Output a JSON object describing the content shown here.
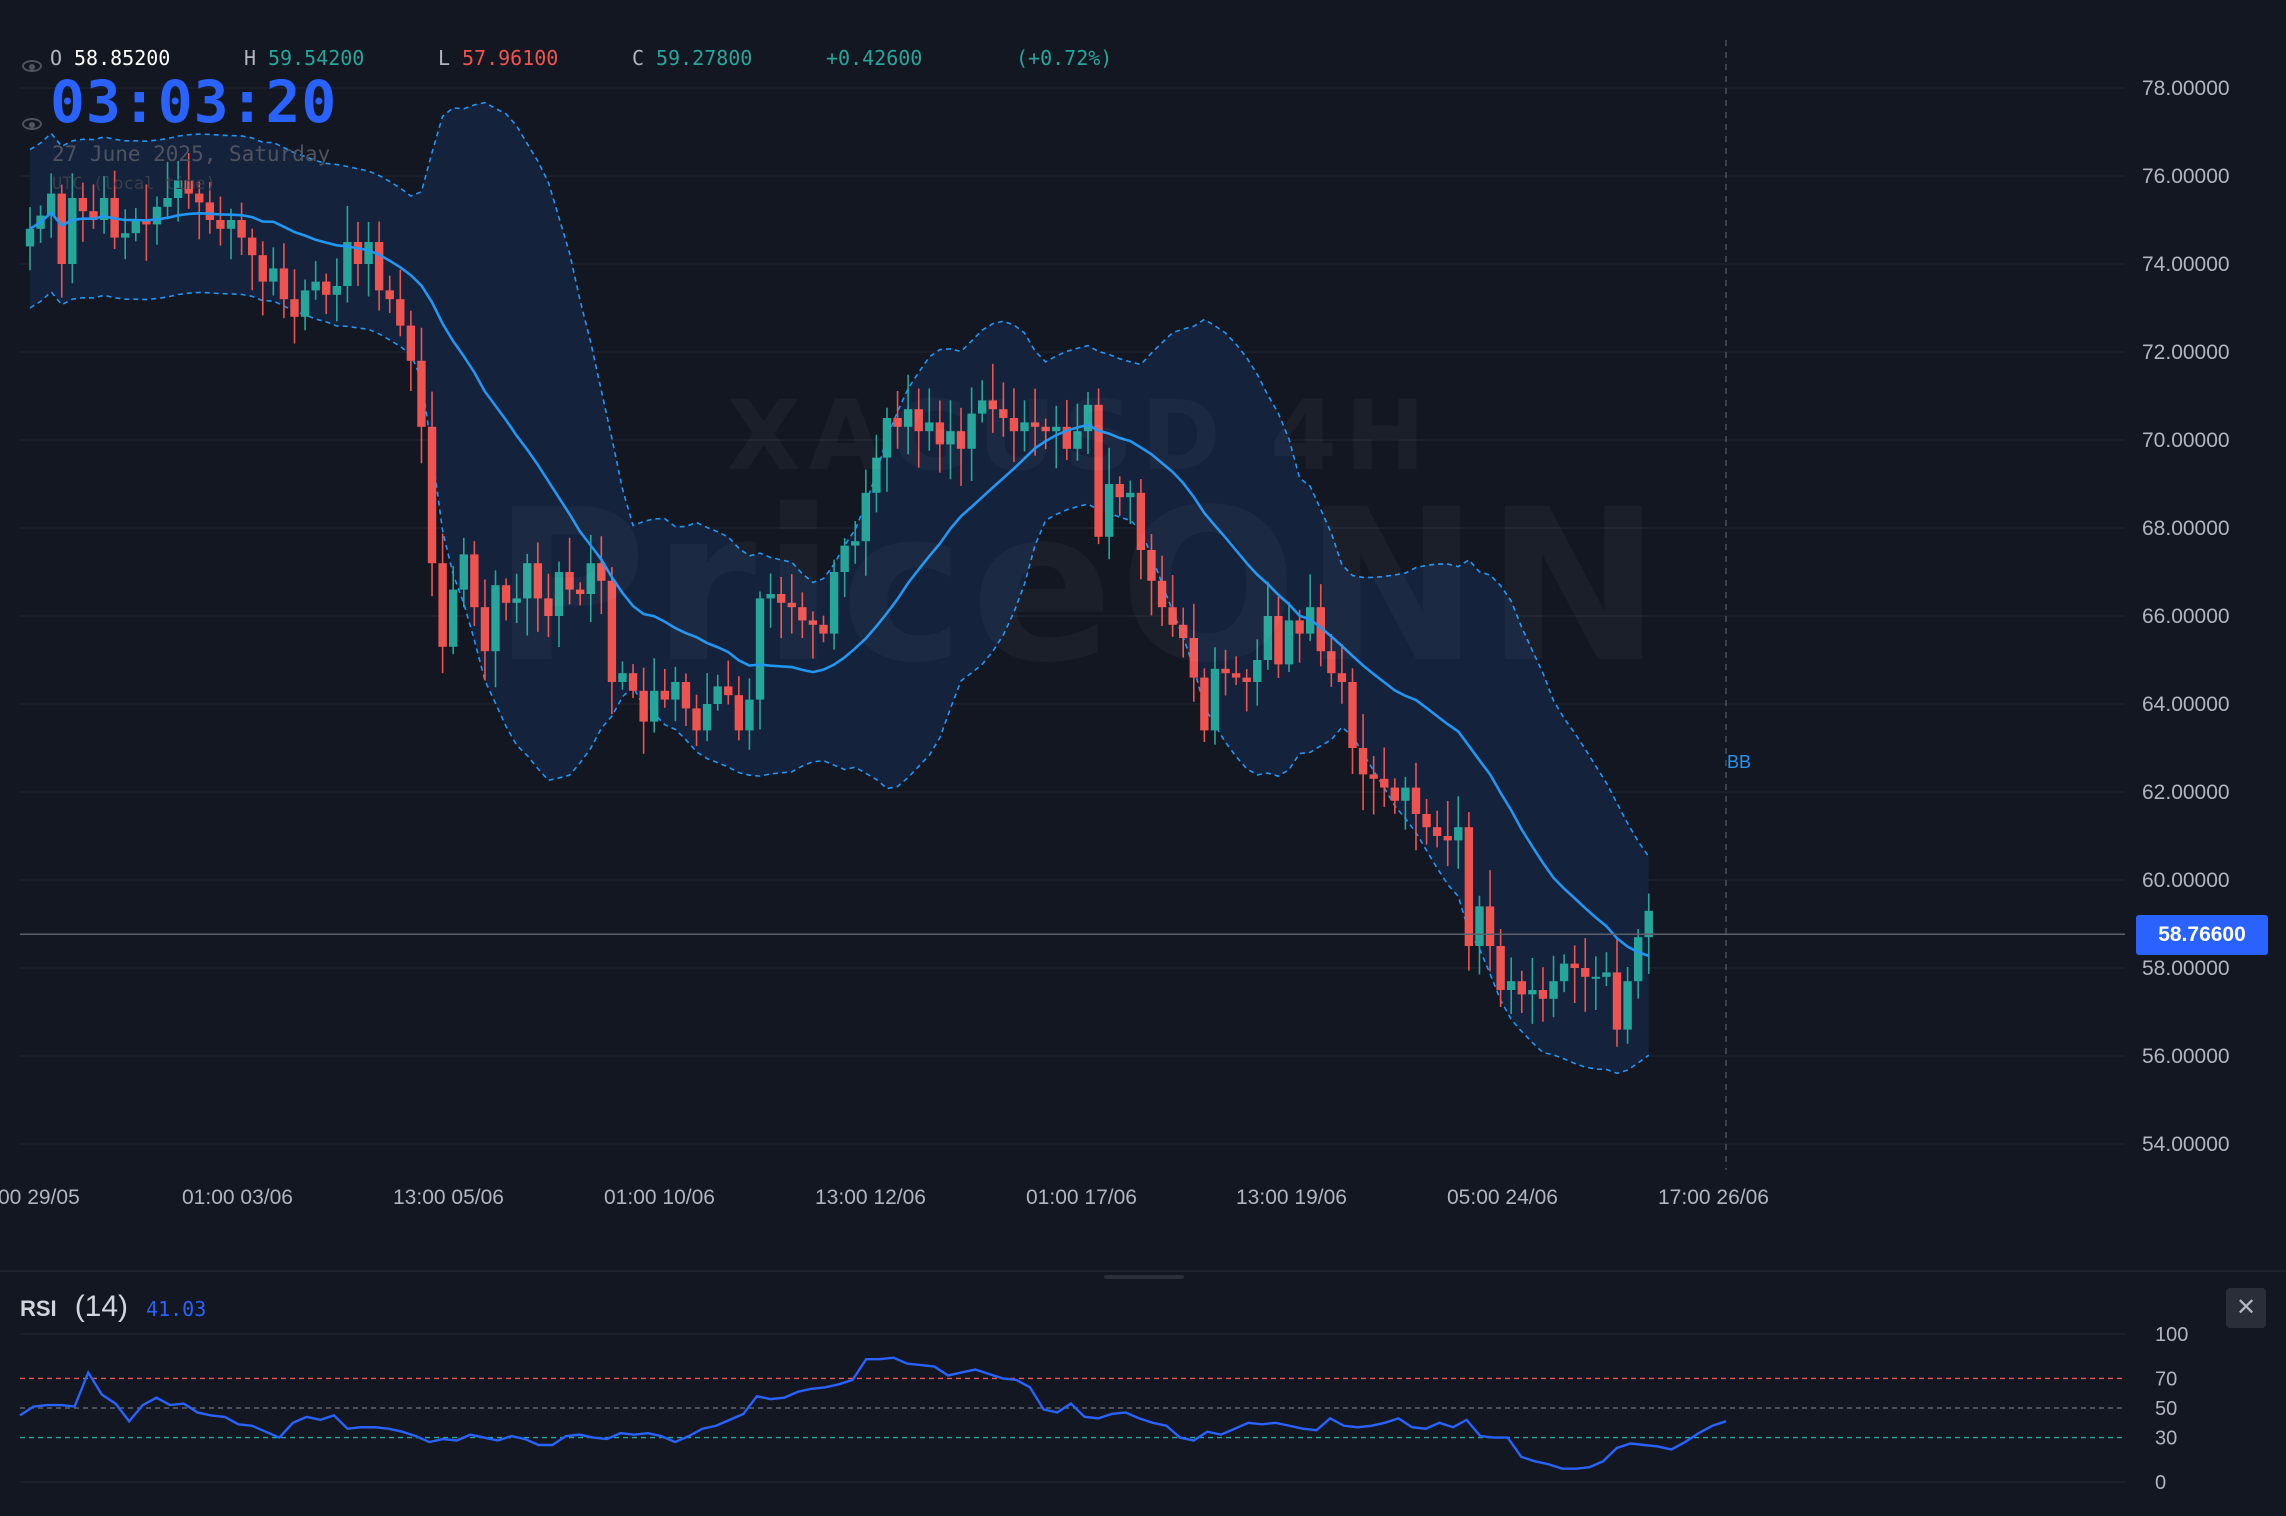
{
  "header": {
    "ohlc": {
      "o_label": "O",
      "o_value": "58.85200",
      "h_label": "H",
      "h_value": "59.54200",
      "l_label": "L",
      "l_value": "57.96100",
      "c_label": "C",
      "c_value": "59.27800",
      "change": "+0.42600",
      "change_pct": "(+0.72%)"
    },
    "clock": "03:03:20",
    "date": "27 June 2025, Saturday",
    "timezone": "UTC (local time)"
  },
  "watermark": {
    "line1": "XAGUSD 4H",
    "line2": "PriceONN"
  },
  "price_tag": "58.76600",
  "bb_label": "BB",
  "colors": {
    "background": "#131722",
    "up": "#26a69a",
    "down": "#ef5350",
    "ma": "#2196f3",
    "band_fill": "#15243f",
    "accent": "#2962ff"
  },
  "chart_data": [
    {
      "type": "candlestick",
      "title": "XAGUSD 4H",
      "y_ticks": [
        "78.00000",
        "76.00000",
        "74.00000",
        "72.00000",
        "70.00000",
        "68.00000",
        "66.00000",
        "64.00000",
        "62.00000",
        "60.00000",
        "58.00000",
        "56.00000",
        "54.00000"
      ],
      "ylim": [
        53.4,
        79.0
      ],
      "x_tick_labels": [
        "00 29/05",
        "01:00 03/06",
        "13:00 05/06",
        "01:00 10/06",
        "13:00 12/06",
        "01:00 17/06",
        "13:00 19/06",
        "05:00 24/06",
        "17:00 26/06"
      ],
      "last_price": 58.766,
      "close": [
        74.8,
        75.1,
        75.6,
        74.0,
        75.5,
        75.2,
        75.0,
        75.5,
        74.6,
        74.7,
        75.0,
        74.9,
        75.3,
        75.5,
        75.9,
        75.6,
        75.4,
        75.0,
        74.8,
        75.0,
        74.6,
        74.2,
        73.6,
        73.9,
        73.2,
        72.8,
        73.4,
        73.6,
        73.3,
        73.5,
        74.5,
        74.0,
        74.5,
        73.4,
        73.2,
        72.6,
        71.8,
        70.3,
        67.2,
        65.3,
        66.6,
        67.4,
        66.2,
        65.2,
        66.7,
        66.3,
        66.4,
        67.2,
        66.4,
        66.0,
        67.0,
        66.6,
        66.5,
        67.2,
        66.8,
        64.5,
        64.7,
        64.3,
        63.6,
        64.3,
        64.1,
        64.5,
        63.9,
        63.4,
        64.0,
        64.4,
        64.2,
        63.4,
        64.1,
        66.4,
        66.5,
        66.3,
        66.2,
        65.9,
        65.8,
        65.6,
        67.0,
        67.6,
        67.7,
        68.8,
        69.6,
        70.5,
        70.3,
        70.7,
        70.2,
        70.4,
        69.9,
        70.2,
        69.8,
        70.6,
        70.9,
        70.7,
        70.5,
        70.2,
        70.4,
        70.3,
        70.2,
        70.3,
        69.8,
        70.2,
        70.8,
        67.8,
        69.0,
        68.7,
        68.8,
        67.5,
        66.8,
        66.2,
        65.8,
        65.5,
        64.6,
        63.4,
        64.8,
        64.7,
        64.6,
        64.5,
        65.0,
        66.0,
        64.9,
        65.9,
        65.6,
        66.2,
        65.2,
        64.7,
        64.5,
        63.0,
        62.4,
        62.3,
        62.1,
        61.8,
        62.1,
        61.5,
        61.2,
        61.0,
        60.9,
        61.2,
        58.5,
        59.4,
        58.5,
        57.5,
        57.7,
        57.4,
        57.5,
        57.3,
        57.7,
        58.1,
        58.0,
        57.8,
        57.8,
        57.9,
        56.6,
        57.7,
        58.7,
        59.3
      ],
      "series": [
        {
          "name": "BB basis",
          "role": "moving-average"
        },
        {
          "name": "BB upper",
          "role": "upper-band"
        },
        {
          "name": "BB lower",
          "role": "lower-band"
        }
      ]
    },
    {
      "type": "line",
      "title": "RSI",
      "length": "(14)",
      "value": "41.03",
      "y_ticks": [
        "100",
        "70",
        "50",
        "30",
        "0"
      ],
      "ylim": [
        0,
        100
      ],
      "levels": {
        "overbought": 70,
        "middle": 50,
        "oversold": 30
      },
      "values": [
        45,
        51,
        52,
        52,
        51,
        74,
        59,
        53,
        41,
        52,
        57,
        52,
        53,
        47,
        45,
        44,
        39,
        38,
        34,
        30,
        40,
        44,
        42,
        45,
        36,
        37,
        37,
        36,
        34,
        31,
        27,
        29,
        28,
        32,
        30,
        28,
        31,
        29,
        25,
        25,
        31,
        32,
        30,
        29,
        33,
        32,
        33,
        31,
        27,
        31,
        36,
        38,
        42,
        46,
        58,
        56,
        57,
        61,
        63,
        64,
        66,
        69,
        83,
        83,
        84,
        80,
        79,
        78,
        72,
        74,
        76,
        73,
        70,
        69,
        64,
        49,
        47,
        53,
        44,
        43,
        46,
        47,
        43,
        40,
        38,
        30,
        28,
        34,
        32,
        36,
        40,
        39,
        40,
        38,
        36,
        35,
        43,
        38,
        37,
        38,
        40,
        43,
        37,
        36,
        40,
        37,
        42,
        31,
        30,
        30,
        17,
        14,
        12,
        9,
        9,
        10,
        14,
        23,
        26,
        25,
        24,
        22,
        27,
        33,
        38,
        41
      ]
    }
  ]
}
